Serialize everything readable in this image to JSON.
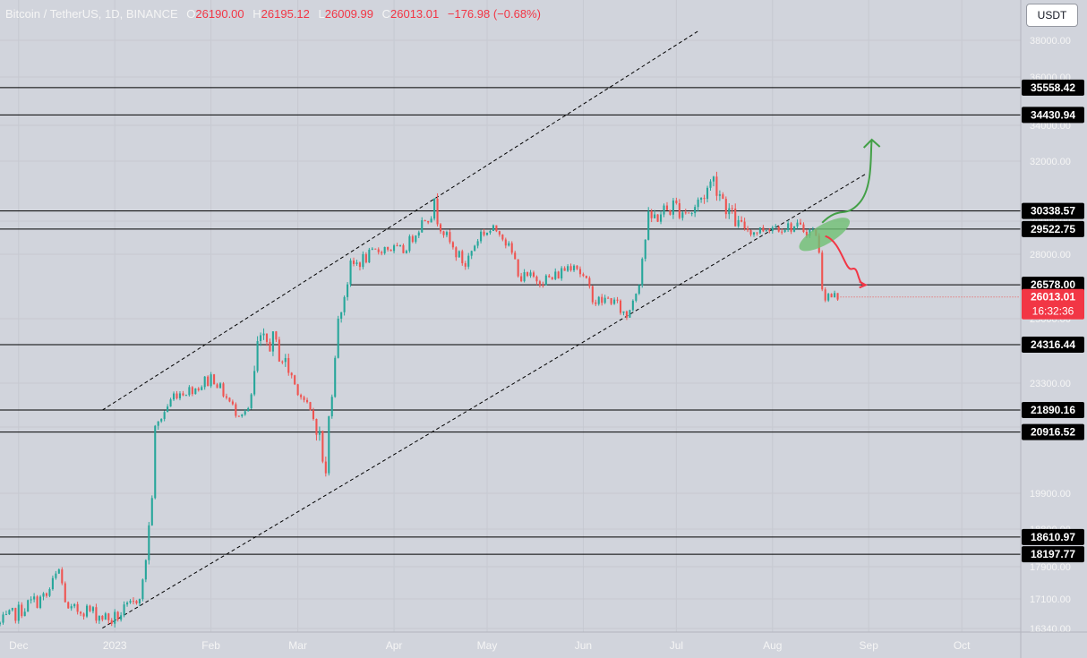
{
  "legend": {
    "symbol": "Bitcoin / TetherUS, 1D, BINANCE",
    "open_key": "O",
    "open": "26190.00",
    "high_key": "H",
    "high": "26195.12",
    "low_key": "L",
    "low": "26009.99",
    "close_key": "C",
    "close": "26013.01",
    "change": "−176.98 (−0.68%)"
  },
  "currency_button": "USDT",
  "colors": {
    "up": "#26a69a",
    "down": "#ef5350",
    "background": "#d1d4dc",
    "arrow_up": "#43a047",
    "arrow_down": "#f23645",
    "highlight": "#6fbf73"
  },
  "chart_data": {
    "type": "candlestick",
    "symbol": "BTCUSDT",
    "timeframe": "1D",
    "x_range": [
      "2022-11-25",
      "2023-10-20"
    ],
    "y_range": [
      16340,
      38500
    ],
    "x_ticks": [
      {
        "label": "Dec",
        "date": "2022-12-01"
      },
      {
        "label": "2023",
        "date": "2023-01-01"
      },
      {
        "label": "Feb",
        "date": "2023-02-01"
      },
      {
        "label": "Mar",
        "date": "2023-03-01"
      },
      {
        "label": "Apr",
        "date": "2023-04-01"
      },
      {
        "label": "May",
        "date": "2023-05-01"
      },
      {
        "label": "Jun",
        "date": "2023-06-01"
      },
      {
        "label": "Jul",
        "date": "2023-07-01"
      },
      {
        "label": "Aug",
        "date": "2023-08-01"
      },
      {
        "label": "Sep",
        "date": "2023-09-01"
      },
      {
        "label": "Oct",
        "date": "2023-10-01"
      }
    ],
    "y_ticks": [
      {
        "label": "38000.00",
        "value": 38000
      },
      {
        "label": "36000.00",
        "value": 36000
      },
      {
        "label": "34000.00",
        "value": 34000
      },
      {
        "label": "32000.00",
        "value": 32000
      },
      {
        "label": "30000.00",
        "value": 30000
      },
      {
        "label": "28000.00",
        "value": 28000
      },
      {
        "label": "25000.00",
        "value": 25000
      },
      {
        "label": "23300.00",
        "value": 23300
      },
      {
        "label": "21000.00",
        "value": 21000
      },
      {
        "label": "19900.00",
        "value": 19900
      },
      {
        "label": "18800.00",
        "value": 18800
      },
      {
        "label": "17900.00",
        "value": 17900
      },
      {
        "label": "17100.00",
        "value": 17100
      },
      {
        "label": "16340.00",
        "value": 16340
      }
    ],
    "levels": [
      {
        "label": "35558.42",
        "value": 35558.42
      },
      {
        "label": "34430.94",
        "value": 34430.94
      },
      {
        "label": "30338.57",
        "value": 30338.57
      },
      {
        "label": "29522.75",
        "value": 29522.75
      },
      {
        "label": "26578.00",
        "value": 26578.0,
        "start": "2023-03-18"
      },
      {
        "label": "24316.44",
        "value": 24316.44
      },
      {
        "label": "21890.16",
        "value": 21890.16
      },
      {
        "label": "20916.52",
        "value": 20916.52
      },
      {
        "label": "18610.97",
        "value": 18610.97
      },
      {
        "label": "18197.77",
        "value": 18197.77
      }
    ],
    "current_price": {
      "label": "26013.01",
      "value": 26013.01,
      "countdown": "16:32:36"
    },
    "channel_lines": [
      {
        "from": {
          "date": "2022-12-28",
          "price": 21890
        },
        "to": {
          "date": "2023-07-08",
          "price": 38500
        }
      },
      {
        "from": {
          "date": "2022-12-28",
          "price": 16350
        },
        "to": {
          "date": "2023-08-31",
          "price": 31570
        }
      }
    ],
    "annotations": [
      {
        "kind": "highlight-ellipse",
        "date": "2023-08-16",
        "price": 29200
      },
      {
        "kind": "arrow-up",
        "from": {
          "date": "2023-08-17",
          "price": 29900
        },
        "to": {
          "date": "2023-09-02",
          "price": 33200
        }
      },
      {
        "kind": "arrow-down",
        "from": {
          "date": "2023-08-18",
          "price": 29100
        },
        "to": {
          "date": "2023-08-31",
          "price": 26570
        }
      }
    ],
    "anchors": [
      {
        "date": "2022-11-25",
        "price": 16450
      },
      {
        "date": "2022-12-05",
        "price": 17000
      },
      {
        "date": "2022-12-10",
        "price": 17150
      },
      {
        "date": "2022-12-14",
        "price": 17800
      },
      {
        "date": "2022-12-17",
        "price": 16750
      },
      {
        "date": "2022-12-22",
        "price": 16850
      },
      {
        "date": "2022-12-31",
        "price": 16550
      },
      {
        "date": "2023-01-07",
        "price": 16950
      },
      {
        "date": "2023-01-10",
        "price": 17450
      },
      {
        "date": "2023-01-12",
        "price": 18850
      },
      {
        "date": "2023-01-14",
        "price": 20900
      },
      {
        "date": "2023-01-20",
        "price": 22700
      },
      {
        "date": "2023-01-27",
        "price": 23050
      },
      {
        "date": "2023-02-02",
        "price": 23500
      },
      {
        "date": "2023-02-09",
        "price": 21800
      },
      {
        "date": "2023-02-13",
        "price": 21800
      },
      {
        "date": "2023-02-16",
        "price": 24300
      },
      {
        "date": "2023-02-21",
        "price": 24400
      },
      {
        "date": "2023-02-27",
        "price": 23500
      },
      {
        "date": "2023-03-03",
        "price": 22400
      },
      {
        "date": "2023-03-10",
        "price": 20150
      },
      {
        "date": "2023-03-13",
        "price": 24200
      },
      {
        "date": "2023-03-18",
        "price": 27400
      },
      {
        "date": "2023-03-29",
        "price": 28400
      },
      {
        "date": "2023-04-04",
        "price": 28200
      },
      {
        "date": "2023-04-11",
        "price": 30200
      },
      {
        "date": "2023-04-14",
        "price": 30450
      },
      {
        "date": "2023-04-20",
        "price": 28300
      },
      {
        "date": "2023-04-24",
        "price": 27500
      },
      {
        "date": "2023-04-29",
        "price": 29300
      },
      {
        "date": "2023-05-05",
        "price": 29500
      },
      {
        "date": "2023-05-12",
        "price": 26900
      },
      {
        "date": "2023-05-22",
        "price": 26850
      },
      {
        "date": "2023-05-29",
        "price": 27700
      },
      {
        "date": "2023-06-05",
        "price": 25800
      },
      {
        "date": "2023-06-10",
        "price": 25900
      },
      {
        "date": "2023-06-15",
        "price": 25100
      },
      {
        "date": "2023-06-19",
        "price": 26800
      },
      {
        "date": "2023-06-22",
        "price": 30000
      },
      {
        "date": "2023-06-30",
        "price": 30500
      },
      {
        "date": "2023-07-06",
        "price": 30300
      },
      {
        "date": "2023-07-13",
        "price": 31400
      },
      {
        "date": "2023-07-20",
        "price": 29900
      },
      {
        "date": "2023-07-26",
        "price": 29350
      },
      {
        "date": "2023-08-01",
        "price": 29700
      },
      {
        "date": "2023-08-08",
        "price": 29650
      },
      {
        "date": "2023-08-15",
        "price": 29300
      },
      {
        "date": "2023-08-17",
        "price": 26600
      },
      {
        "date": "2023-08-18",
        "price": 26050
      },
      {
        "date": "2023-08-22",
        "price": 26013
      }
    ]
  }
}
